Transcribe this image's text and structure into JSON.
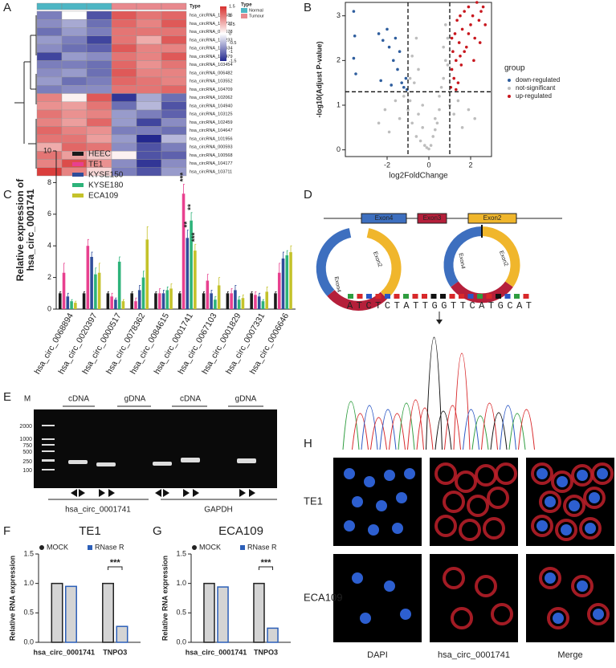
{
  "panel_labels": [
    "A",
    "B",
    "C",
    "D",
    "E",
    "F",
    "G",
    "H"
  ],
  "chart_data": [
    {
      "type": "heatmap",
      "annotation_label": "Type",
      "legend_title": "Type",
      "groups": [
        {
          "name": "Normal",
          "color": "#4db6c4"
        },
        {
          "name": "Tumour",
          "color": "#e8898e"
        }
      ],
      "column_groups": [
        0,
        0,
        0,
        1,
        1,
        1
      ],
      "clim": [
        -1.5,
        1.5
      ],
      "cticks": [
        1.5,
        1,
        0.5,
        0,
        -0.5,
        -1,
        -1.5
      ],
      "colors": [
        "#23288f",
        "#ffffff",
        "#d7302e"
      ],
      "rows": [
        "hsa_circRNA_103586",
        "hsa_circRNA_100722",
        "hsa_circRNA_001678",
        "hsa_circRNA_104233",
        "hsa_circRNA_104634",
        "hsa_circRNA_104479",
        "hsa_circRNA_103454",
        "hsa_circRNA_006482",
        "hsa_circRNA_103552",
        "hsa_circRNA_104709",
        "hsa_circRNA_102062",
        "hsa_circRNA_104940",
        "hsa_circRNA_103125",
        "hsa_circRNA_102459",
        "hsa_circRNA_104647",
        "hsa_circRNA_101956",
        "hsa_circRNA_000593",
        "hsa_circRNA_100568",
        "hsa_circRNA_104177",
        "hsa_circRNA_103711"
      ],
      "values": [
        [
          -0.9,
          0.0,
          -1.2,
          1.2,
          1.0,
          1.1
        ],
        [
          -0.8,
          -0.6,
          -1.0,
          1.1,
          0.9,
          1.2
        ],
        [
          -1.0,
          -0.7,
          -0.9,
          1.0,
          1.0,
          1.0
        ],
        [
          -0.7,
          -0.9,
          -1.3,
          1.0,
          0.6,
          1.2
        ],
        [
          -0.8,
          -1.0,
          -1.1,
          1.2,
          0.9,
          0.9
        ],
        [
          -1.3,
          -0.7,
          -0.8,
          1.0,
          0.9,
          1.2
        ],
        [
          -0.9,
          -0.9,
          -1.0,
          1.1,
          0.8,
          1.0
        ],
        [
          -0.8,
          -0.7,
          -1.0,
          1.2,
          0.9,
          0.9
        ],
        [
          -0.7,
          -1.0,
          -0.9,
          1.1,
          1.0,
          0.9
        ],
        [
          -0.9,
          -0.8,
          -0.8,
          1.0,
          1.0,
          1.1
        ],
        [
          0.9,
          0.1,
          1.2,
          -1.4,
          -0.6,
          -1.0
        ],
        [
          0.8,
          0.7,
          1.0,
          -1.0,
          -0.5,
          -1.2
        ],
        [
          1.0,
          0.8,
          0.9,
          -0.7,
          -0.9,
          -1.1
        ],
        [
          0.9,
          0.7,
          1.1,
          -0.7,
          -1.3,
          -0.8
        ],
        [
          1.1,
          0.9,
          0.8,
          -0.9,
          -0.9,
          -1.0
        ],
        [
          1.0,
          1.0,
          0.7,
          -0.7,
          -1.5,
          -0.5
        ],
        [
          0.6,
          1.1,
          1.0,
          -0.8,
          -1.2,
          -0.9
        ],
        [
          1.0,
          0.7,
          0.4,
          0.1,
          -1.2,
          -1.1
        ],
        [
          0.9,
          1.3,
          0.8,
          -0.8,
          -1.4,
          -0.8
        ],
        [
          1.4,
          0.9,
          0.3,
          -0.9,
          -1.2,
          -0.7
        ]
      ]
    },
    {
      "type": "scatter",
      "xlabel": "log2FoldChange",
      "ylabel": "-log10(Adjust P-value)",
      "legend_title": "group",
      "xlim": [
        -4,
        3
      ],
      "ylim": [
        -0.15,
        3.3
      ],
      "xticks": [
        -2,
        0,
        2
      ],
      "yticks": [
        0,
        1,
        2,
        3
      ],
      "vlines": [
        -1,
        1
      ],
      "hline": 1.3,
      "series": [
        {
          "name": "down-regulated",
          "color": "#2f5e9e",
          "x": [
            -3.6,
            -3.55,
            -3.6,
            -3.5,
            -2.4,
            -2.2,
            -2.0,
            -1.9,
            -1.7,
            -1.6,
            -1.5,
            -1.4,
            -1.3,
            -1.2,
            -1.1,
            -1.05,
            -1.8,
            -2.3
          ],
          "y": [
            3.1,
            2.55,
            2.05,
            1.7,
            2.6,
            2.45,
            2.7,
            2.3,
            2.0,
            2.5,
            1.8,
            2.2,
            1.5,
            1.4,
            1.6,
            1.35,
            1.45,
            1.55
          ]
        },
        {
          "name": "not-significant",
          "color": "#bdbdbd",
          "x": [
            -2.4,
            -2.1,
            -1.9,
            -1.6,
            -1.4,
            -1.2,
            -1.0,
            -0.9,
            -0.8,
            -0.7,
            -0.6,
            -0.5,
            -0.4,
            -0.3,
            -0.2,
            -0.1,
            0,
            0.1,
            0.2,
            0.3,
            0.4,
            0.5,
            0.6,
            0.7,
            0.8,
            0.9,
            1.0,
            1.2,
            1.4,
            1.6,
            1.9,
            2.2,
            -0.5,
            0.5,
            -0.8,
            0.8,
            -0.3,
            0.3,
            0.9,
            -0.9,
            0.7,
            -0.6
          ],
          "y": [
            0.6,
            0.9,
            0.4,
            1.1,
            0.7,
            1.2,
            0.9,
            1.1,
            0.6,
            1.5,
            0.3,
            0.8,
            0.2,
            0.5,
            0.1,
            0.05,
            0.02,
            0.1,
            0.3,
            0.45,
            0.6,
            0.9,
            1.4,
            1.6,
            2.0,
            2.5,
            1.0,
            0.8,
            1.1,
            0.5,
            0.9,
            0.7,
            1.8,
            1.2,
            2.1,
            2.8,
            1.0,
            0.7,
            1.9,
            1.6,
            2.3,
            2.5
          ]
        },
        {
          "name": "up-regulated",
          "color": "#c8171e",
          "x": [
            1.05,
            1.1,
            1.15,
            1.2,
            1.25,
            1.3,
            1.35,
            1.4,
            1.45,
            1.5,
            1.55,
            1.6,
            1.7,
            1.8,
            1.9,
            2.0,
            2.1,
            2.2,
            2.3,
            2.4,
            2.5,
            2.6,
            1.1,
            1.3,
            1.5,
            1.7,
            1.9,
            2.15,
            2.45,
            2.7
          ],
          "y": [
            1.4,
            1.8,
            2.2,
            1.6,
            2.6,
            2.0,
            2.9,
            1.5,
            2.4,
            3.0,
            1.9,
            2.7,
            3.1,
            2.3,
            3.2,
            2.8,
            3.0,
            2.5,
            3.3,
            2.9,
            3.1,
            3.2,
            2.5,
            1.35,
            2.1,
            2.2,
            2.6,
            2.0,
            2.4,
            2.8
          ]
        }
      ]
    },
    {
      "type": "bar",
      "ylabel": [
        "Relative expression of",
        "hsa_circ_0001741"
      ],
      "ylim": [
        0,
        10
      ],
      "yticks": [
        0,
        2,
        4,
        6,
        8,
        10
      ],
      "categories": [
        "hsa_circ_0068894",
        "hsa_circ_0020397",
        "hsa_circ_0000517",
        "hsa_circ_0078362",
        "hsa_circ_0084615",
        "hsa_circ_0001741",
        "hsa_circ_0067103",
        "hsa_circ_0001829",
        "hsa_circ_0007331",
        "hsa_circ_0006646"
      ],
      "series": [
        {
          "name": "HEEC",
          "color": "#1a1a1a",
          "values": [
            1,
            1,
            1,
            1,
            1,
            1,
            1,
            1,
            1,
            1
          ],
          "errors": [
            0.1,
            0.1,
            0.1,
            0.1,
            0.1,
            0.1,
            0.1,
            0.1,
            0.1,
            0.1
          ]
        },
        {
          "name": "TE1",
          "color": "#e8408f",
          "values": [
            2.3,
            4.0,
            0.8,
            0.5,
            1.0,
            7.3,
            1.8,
            1.0,
            0.9,
            2.3
          ],
          "errors": [
            0.6,
            0.4,
            0.2,
            0.2,
            0.3,
            0.6,
            0.4,
            0.3,
            0.2,
            0.6
          ]
        },
        {
          "name": "KYSE150",
          "color": "#2f4d9a",
          "values": [
            0.8,
            3.3,
            0.6,
            1.2,
            1.0,
            4.5,
            1.0,
            1.2,
            0.8,
            3.2
          ],
          "errors": [
            0.2,
            0.3,
            0.1,
            0.3,
            0.2,
            0.5,
            0.2,
            0.3,
            0.2,
            0.4
          ]
        },
        {
          "name": "KYSE180",
          "color": "#2db37a",
          "values": [
            0.5,
            2.2,
            3.0,
            2.0,
            1.2,
            5.6,
            0.6,
            0.6,
            0.5,
            3.4
          ],
          "errors": [
            0.1,
            0.4,
            0.3,
            0.4,
            0.2,
            0.5,
            0.2,
            0.2,
            0.1,
            0.3
          ]
        },
        {
          "name": "ECA109",
          "color": "#c4c22a",
          "values": [
            0.4,
            2.3,
            0.5,
            4.4,
            1.3,
            3.7,
            1.5,
            0.7,
            1.1,
            3.6
          ],
          "errors": [
            0.1,
            0.6,
            0.1,
            0.8,
            0.3,
            0.4,
            0.5,
            0.2,
            0.3,
            0.4
          ]
        }
      ],
      "annotations": [
        {
          "text": "***",
          "category": 5,
          "series": 1
        },
        {
          "text": "**",
          "category": 5,
          "series": 2
        },
        {
          "text": "**",
          "category": 5,
          "series": 3
        },
        {
          "text": "***",
          "category": 5,
          "series": 4
        }
      ]
    },
    {
      "type": "bar",
      "title": "TE1",
      "ylabel": "Relative RNA expression",
      "ylim": [
        0,
        1.5
      ],
      "yticks": [
        {
          "value": 0,
          "label": "0.0"
        },
        0.5,
        {
          "value": 1,
          "label": "1.0"
        },
        1.5
      ],
      "categories": [
        "hsa_circ_0001741",
        "TNPO3"
      ],
      "series": [
        {
          "name": "MOCK",
          "color": "#222222",
          "values": [
            1,
            1
          ]
        },
        {
          "name": "RNase R",
          "color": "#2c5fb8",
          "values": [
            0.95,
            0.27
          ]
        }
      ],
      "annotations": [
        {
          "text": "***",
          "category": 1
        }
      ]
    },
    {
      "type": "bar",
      "title": "ECA109",
      "ylabel": "Relative RNA expression",
      "ylim": [
        0,
        1.5
      ],
      "yticks": [
        {
          "value": 0,
          "label": "0.0"
        },
        0.5,
        {
          "value": 1,
          "label": "1.0"
        },
        1.5
      ],
      "categories": [
        "hsa_circ_0001741",
        "TNPO3"
      ],
      "series": [
        {
          "name": "MOCK",
          "color": "#222222",
          "values": [
            1,
            1
          ]
        },
        {
          "name": "RNase R",
          "color": "#2c5fb8",
          "values": [
            0.94,
            0.24
          ]
        }
      ],
      "annotations": [
        {
          "text": "***",
          "category": 1
        }
      ]
    }
  ],
  "diagram_d": {
    "exons": [
      "Exon4",
      "Exon3",
      "Exon2"
    ],
    "sequence": "ATCTCTATTGGTTCATGCAT"
  },
  "gel_e": {
    "marker": "M",
    "lanes": [
      "cDNA",
      "gDNA",
      "cDNA",
      "gDNA"
    ],
    "ladder": [
      "2000",
      "1000",
      "750",
      "500",
      "250",
      "100"
    ],
    "genes": [
      "hsa_circ_0001741",
      "GAPDH"
    ]
  },
  "microscopy_h": {
    "rows": [
      "TE1",
      "ECA109"
    ],
    "columns": [
      "DAPI",
      "hsa_circ_0001741",
      "Merge"
    ]
  }
}
